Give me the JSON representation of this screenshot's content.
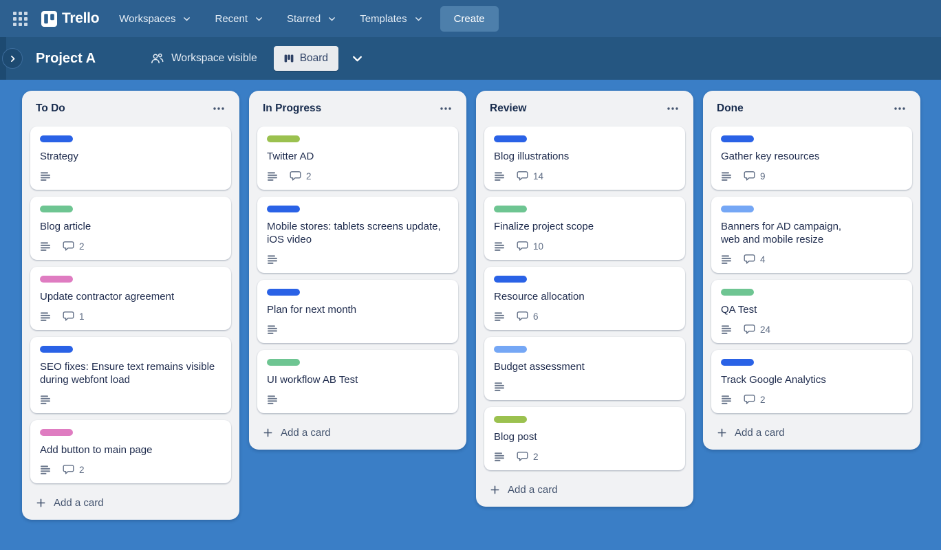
{
  "nav": {
    "logo_text": "Trello",
    "items": [
      {
        "label": "Workspaces"
      },
      {
        "label": "Recent"
      },
      {
        "label": "Starred"
      },
      {
        "label": "Templates"
      }
    ],
    "create_label": "Create"
  },
  "board_header": {
    "title": "Project A",
    "visibility_label": "Workspace visible",
    "view_label": "Board"
  },
  "icons": {
    "nav": [
      "grid-icon",
      "trello-logo-icon",
      "chevron-down-icon"
    ],
    "board_header": [
      "chevron-right-icon",
      "people-icon",
      "board-view-icon",
      "chevron-down-icon"
    ],
    "list": [
      "ellipsis-icon",
      "plus-icon"
    ],
    "card_badges": [
      "description-icon",
      "comment-icon"
    ]
  },
  "colors": {
    "nav_bg": "#2d6090",
    "header_bg": "#255681",
    "canvas_bg": "#3a7ec6",
    "list_bg": "#f1f2f4",
    "card_bg": "#ffffff",
    "label_blue": "#2a62e6",
    "label_mint": "#6ec592",
    "label_lime": "#9bc14f",
    "label_pink": "#df7cc1",
    "label_sky": "#75a7f5"
  },
  "lists": [
    {
      "title": "To Do",
      "add_card_label": "Add a card",
      "cards": [
        {
          "title": "Strategy",
          "label_color": "blue",
          "has_description": true,
          "comments": null
        },
        {
          "title": "Blog article",
          "label_color": "mint",
          "has_description": true,
          "comments": 2
        },
        {
          "title": "Update contractor agreement",
          "label_color": "pink",
          "has_description": true,
          "comments": 1
        },
        {
          "title": "SEO fixes: Ensure text remains visible during webfont load",
          "label_color": "blue",
          "has_description": true,
          "comments": null
        },
        {
          "title": "Add button to main page",
          "label_color": "pink",
          "has_description": true,
          "comments": 2
        }
      ]
    },
    {
      "title": "In Progress",
      "add_card_label": "Add a card",
      "cards": [
        {
          "title": "Twitter AD",
          "label_color": "lime",
          "has_description": true,
          "comments": 2
        },
        {
          "title": "Mobile stores: tablets screens update, iOS video",
          "label_color": "blue",
          "has_description": true,
          "comments": null
        },
        {
          "title": "Plan for next month",
          "label_color": "blue",
          "has_description": true,
          "comments": null
        },
        {
          "title": "UI workflow AB Test",
          "label_color": "mint",
          "has_description": true,
          "comments": null
        }
      ]
    },
    {
      "title": "Review",
      "add_card_label": "Add a card",
      "cards": [
        {
          "title": "Blog illustrations",
          "label_color": "blue",
          "has_description": true,
          "comments": 14
        },
        {
          "title": "Finalize project scope",
          "label_color": "mint",
          "has_description": true,
          "comments": 10
        },
        {
          "title": "Resource allocation",
          "label_color": "blue",
          "has_description": true,
          "comments": 6
        },
        {
          "title": "Budget assessment",
          "label_color": "sky",
          "has_description": true,
          "comments": null
        },
        {
          "title": "Blog post",
          "label_color": "lime",
          "has_description": true,
          "comments": 2
        }
      ]
    },
    {
      "title": "Done",
      "add_card_label": "Add a card",
      "cards": [
        {
          "title": "Gather key resources",
          "label_color": "blue",
          "has_description": true,
          "comments": 9
        },
        {
          "title": "Banners for AD campaign,\nweb and mobile resize",
          "label_color": "sky",
          "has_description": true,
          "comments": 4
        },
        {
          "title": "QA Test",
          "label_color": "mint",
          "has_description": true,
          "comments": 24
        },
        {
          "title": "Track Google Analytics",
          "label_color": "blue",
          "has_description": true,
          "comments": 2
        }
      ]
    }
  ]
}
